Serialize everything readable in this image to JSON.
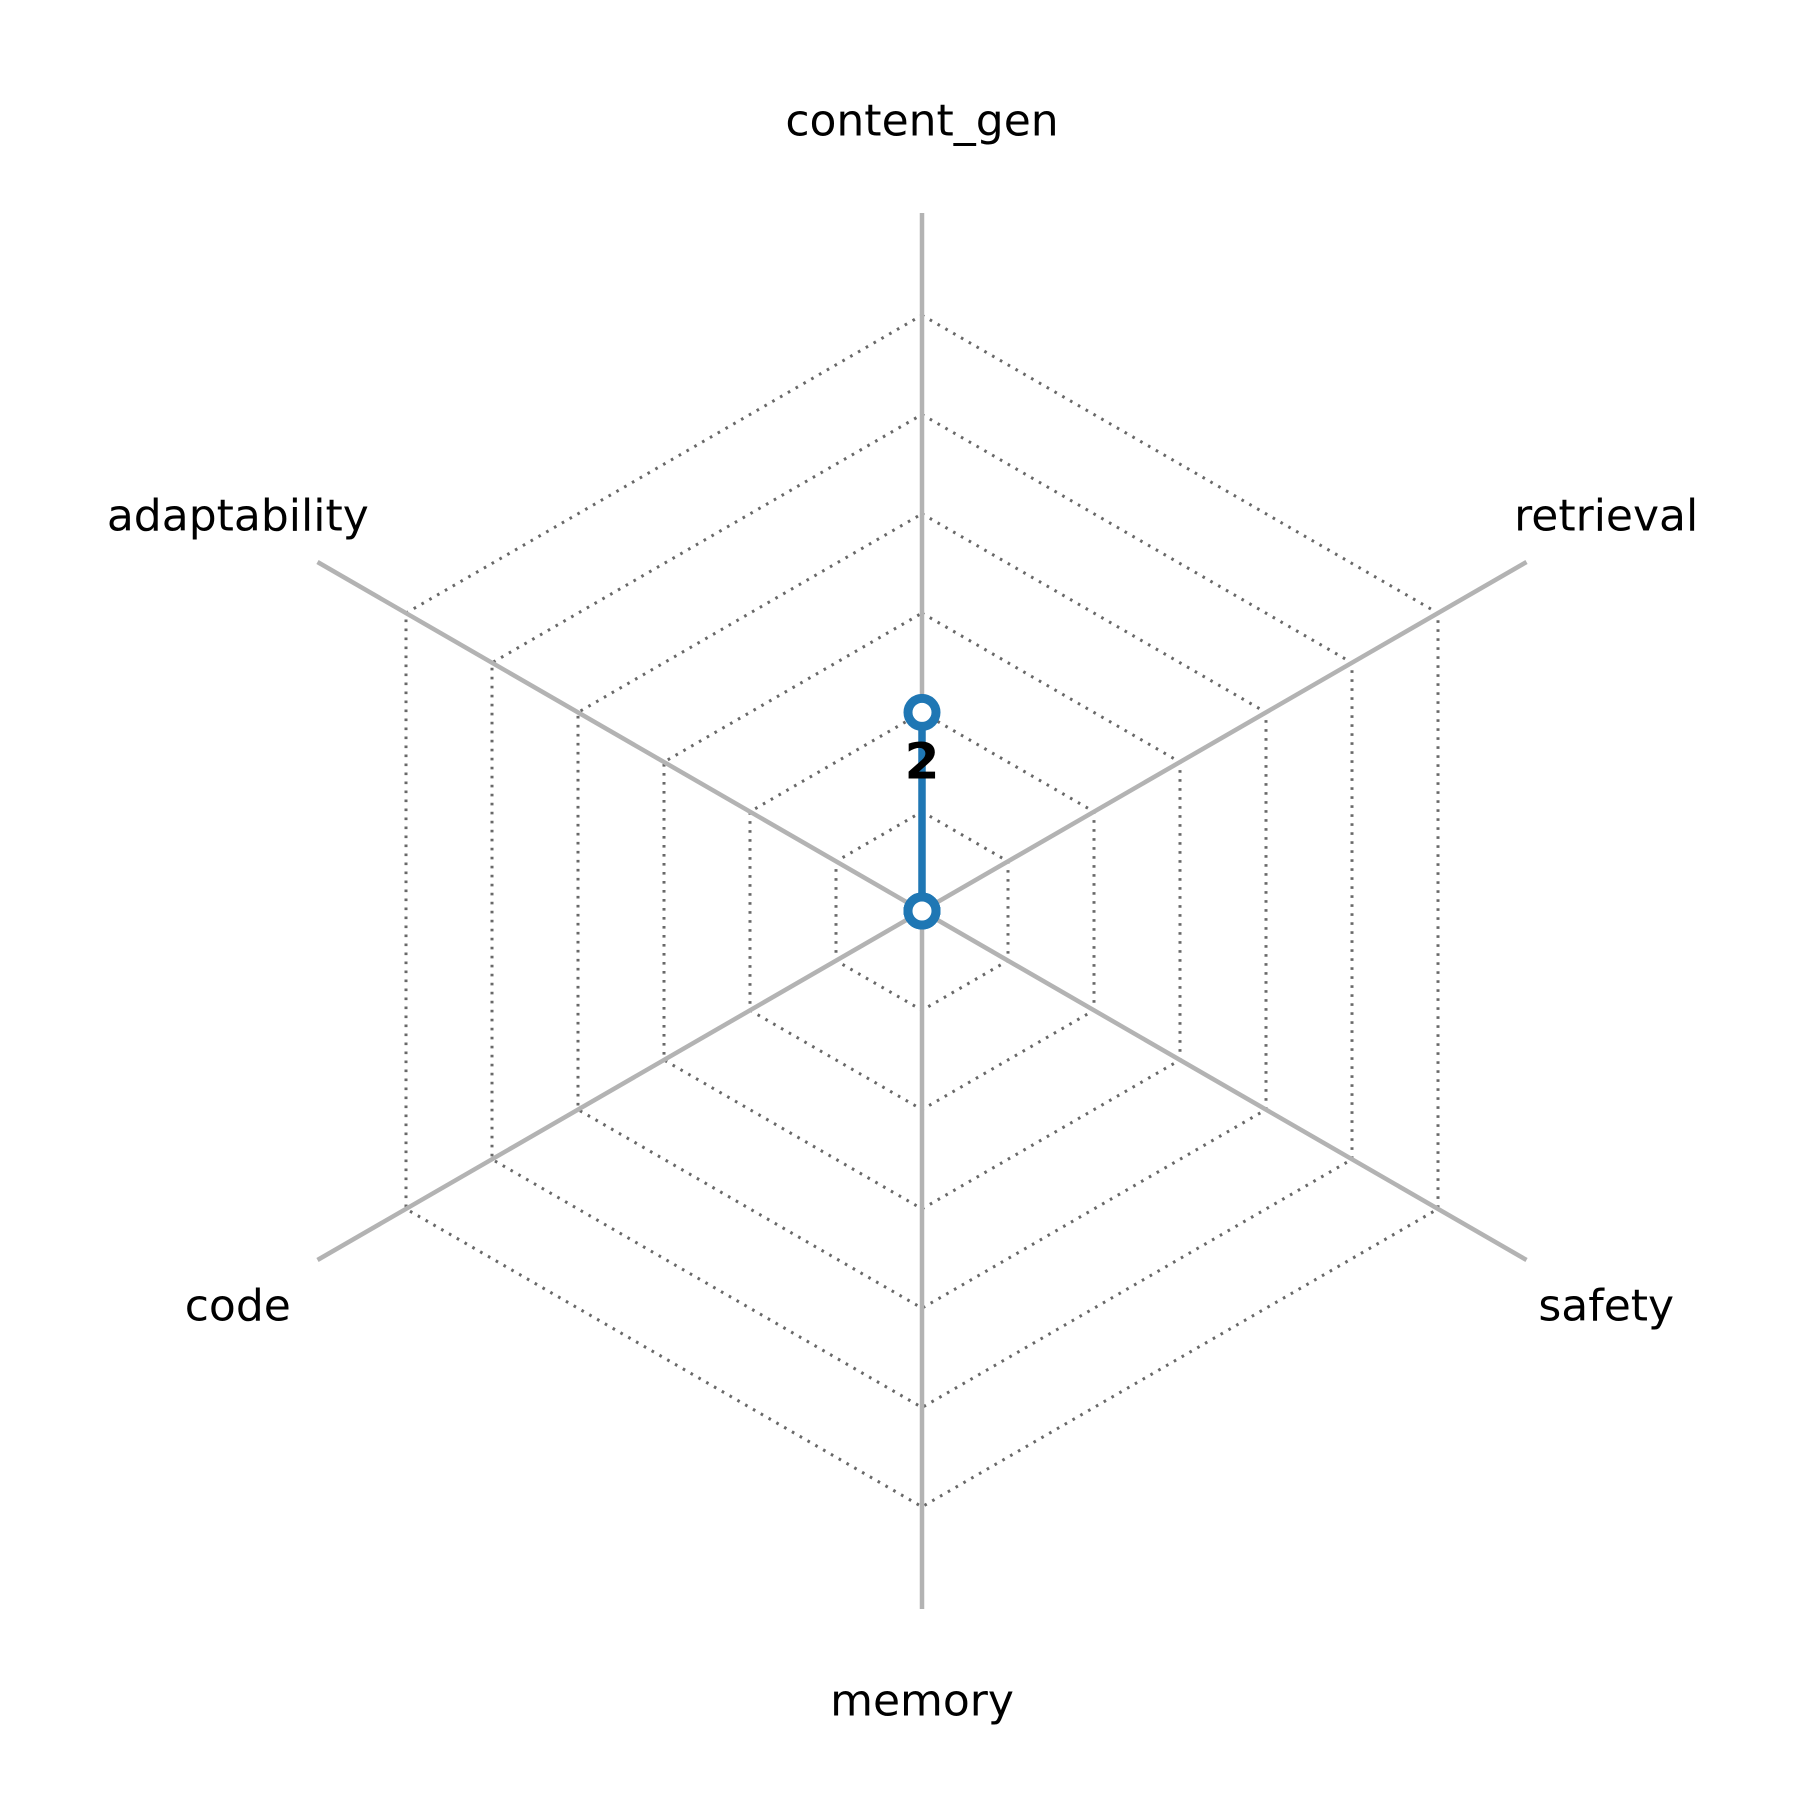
{
  "chart_data": {
    "type": "radar",
    "title": "",
    "categories": [
      "content_gen",
      "retrieval",
      "safety",
      "memory",
      "code",
      "adaptability"
    ],
    "values": [
      2,
      0,
      0,
      0,
      0,
      0
    ],
    "value_labels": [
      "2",
      "",
      "",
      "",
      "",
      ""
    ],
    "ring_values": [
      1,
      2,
      3,
      4,
      5,
      6
    ],
    "axis_max": 7,
    "layout_hints": {
      "grid": "dotted hexagonal rings",
      "axis_lines": "solid gray spokes extending past outer ring",
      "legend": "none",
      "start_axis": "top, clockwise"
    },
    "colors": {
      "series": "#1f77b4",
      "marker_face": "#ffffff",
      "axis_line": "#b3b3b3",
      "grid_ring": "#686868",
      "text": "#000000",
      "background": "#ffffff"
    }
  }
}
